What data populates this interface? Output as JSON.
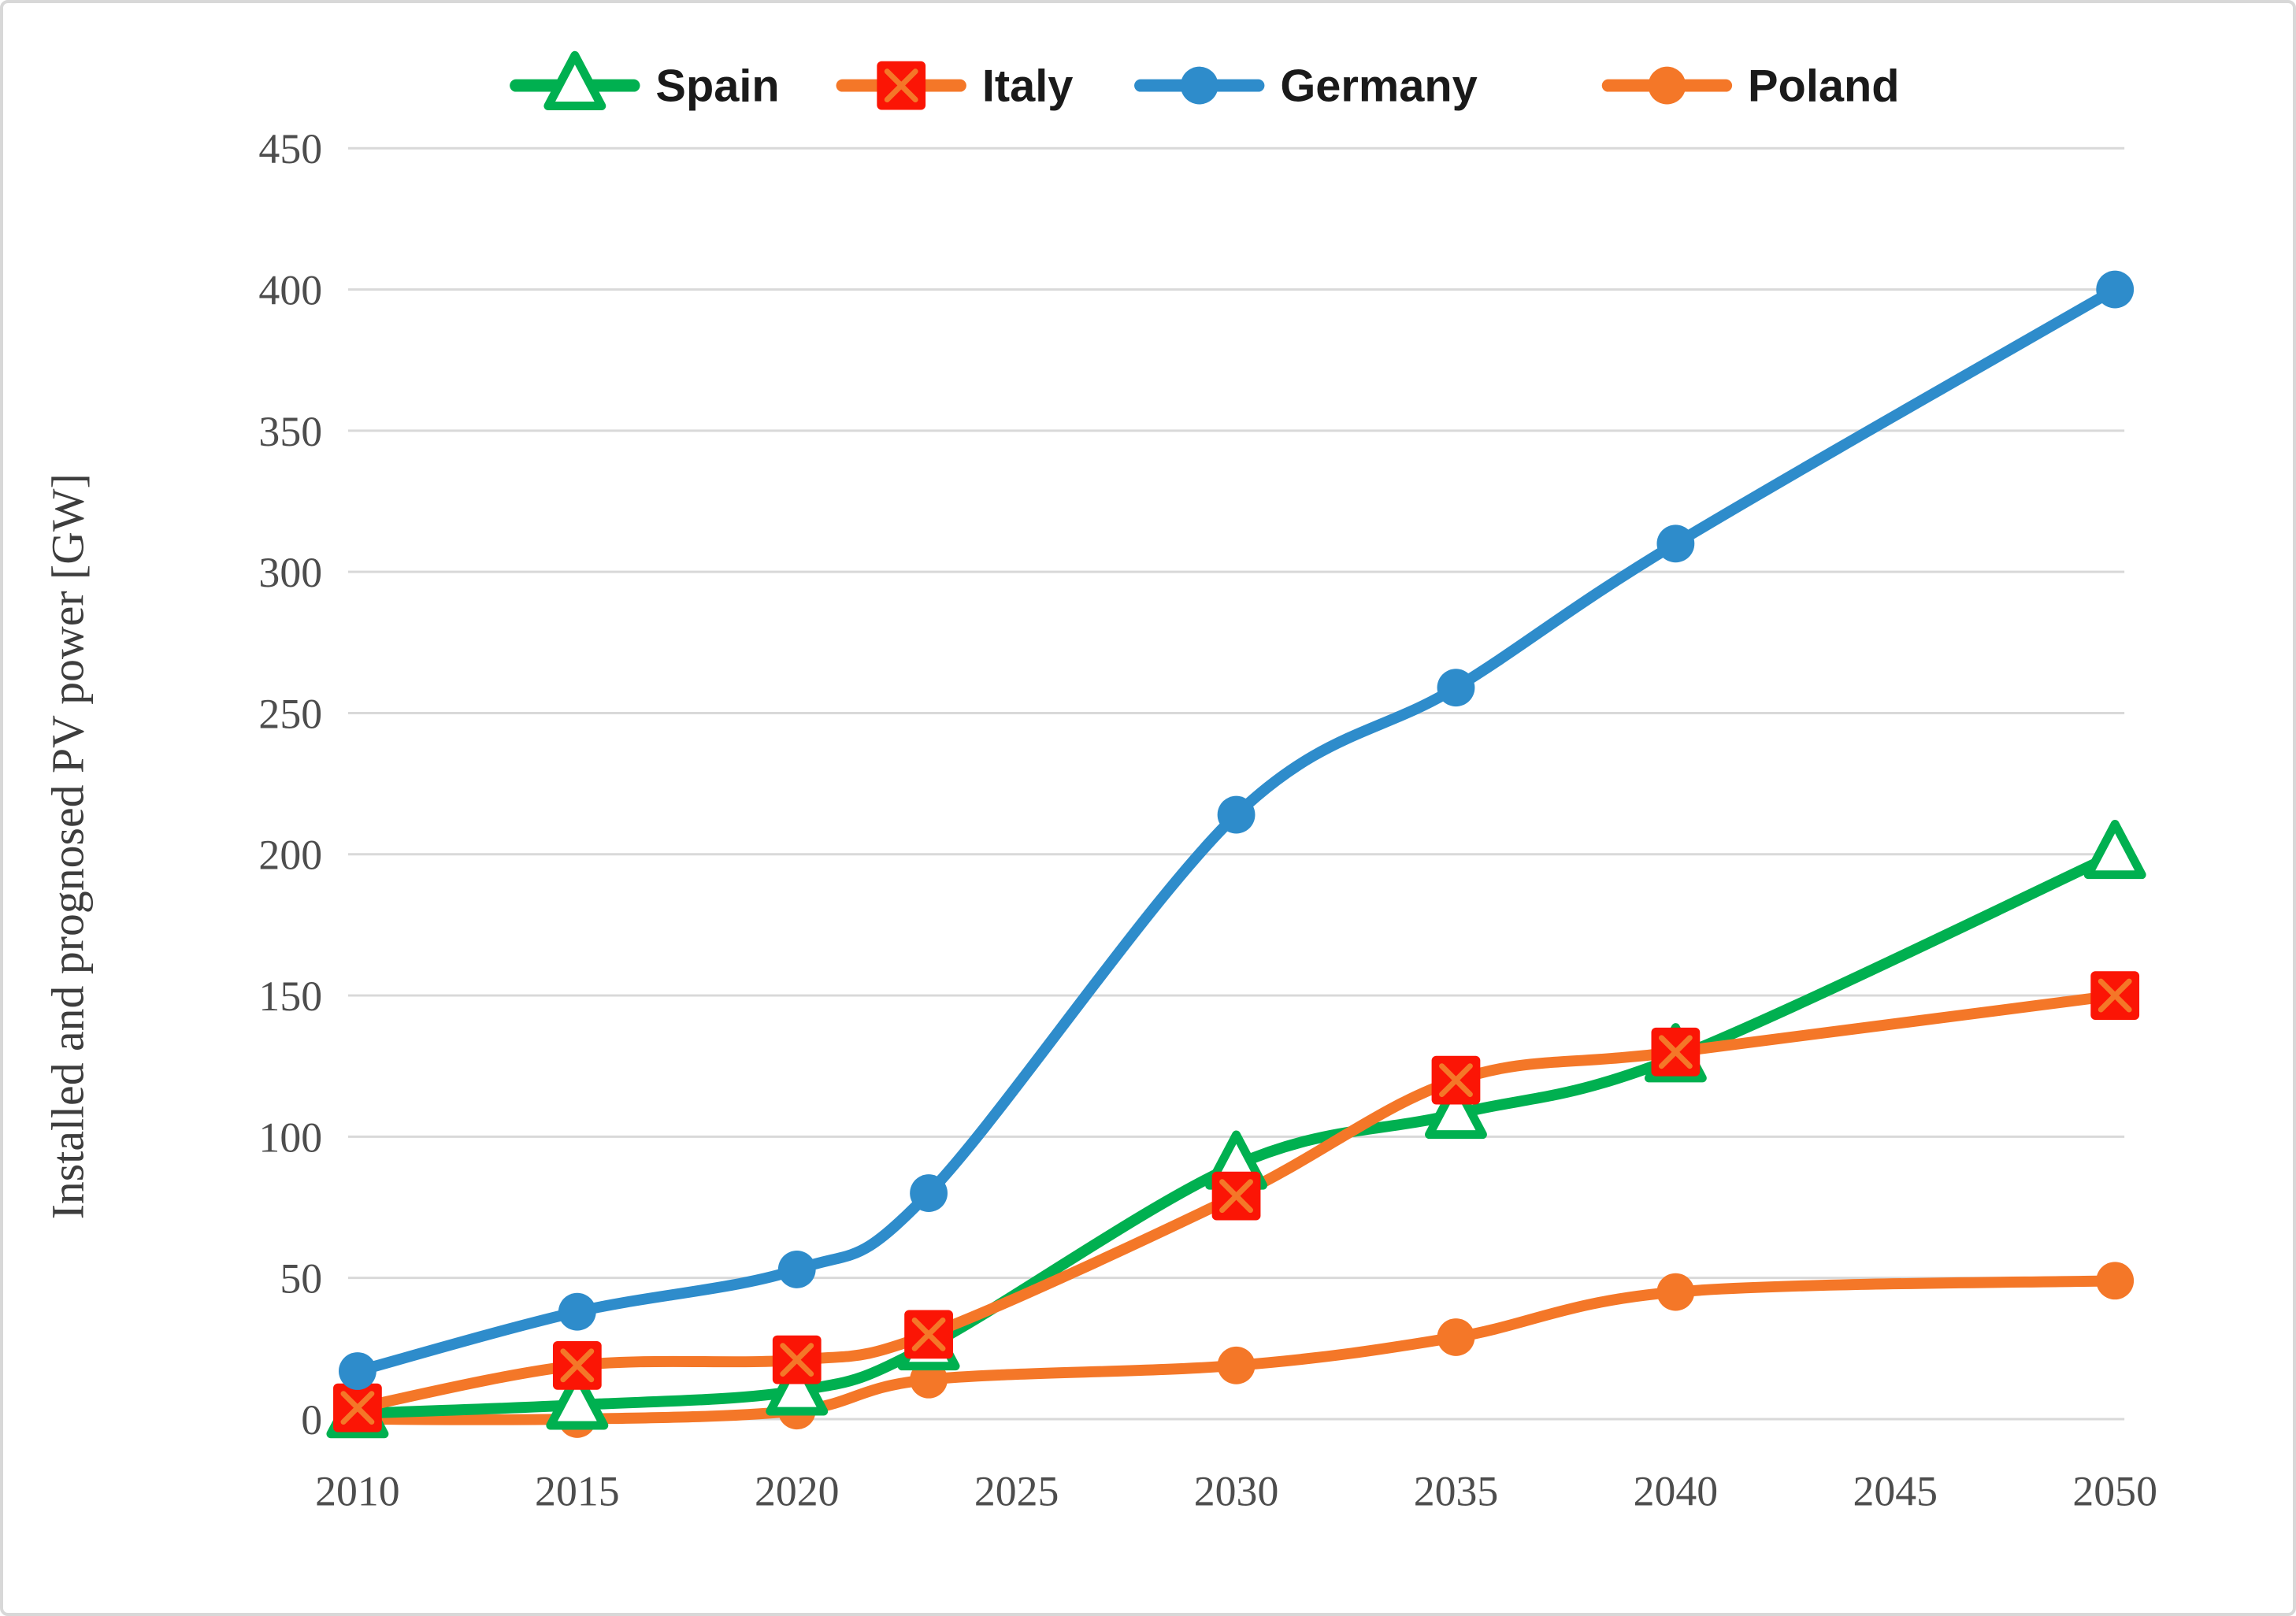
{
  "figure": {
    "type": "line-chart-image",
    "background": "#ffffff",
    "frame_color": "#d8d8d8"
  },
  "chart_data": {
    "type": "line",
    "title": "",
    "xlabel": "",
    "ylabel": "Installed and prognosed PV power [GW]",
    "x": [
      2010,
      2015,
      2020,
      2023,
      2030,
      2035,
      2040,
      2050
    ],
    "series": [
      {
        "name": "Spain",
        "values": [
          2,
          5,
          10,
          26,
          90,
          108,
          128,
          200
        ],
        "line_color": "#00b050",
        "marker": "triangle-open",
        "marker_color": "#00b050",
        "marker_fill": "#ffffff"
      },
      {
        "name": "Italy",
        "values": [
          4,
          19,
          21,
          30,
          79,
          120,
          130,
          150
        ],
        "line_color": "#f47728",
        "marker": "square-x",
        "marker_color": "#fb1505",
        "marker_fill": "#fb1505",
        "marker_cross_color": "#f47728"
      },
      {
        "name": "Germany",
        "values": [
          17,
          38,
          53,
          80,
          214,
          259,
          310,
          400
        ],
        "line_color": "#2e8ccb",
        "marker": "circle",
        "marker_color": "#2e8ccb",
        "marker_fill": "#2e8ccb"
      },
      {
        "name": "Poland",
        "values": [
          0,
          0,
          3,
          14,
          19,
          29,
          45,
          49
        ],
        "line_color": "#f47728",
        "marker": "circle",
        "marker_color": "#f47728",
        "marker_fill": "#f47728"
      }
    ],
    "x_ticks": [
      "2010",
      "2015",
      "2020",
      "2025",
      "2030",
      "2035",
      "2040",
      "2045",
      "2050"
    ],
    "x_tick_values": [
      2010,
      2015,
      2020,
      2025,
      2030,
      2035,
      2040,
      2045,
      2050
    ],
    "y_ticks": [
      "0",
      "50",
      "100",
      "150",
      "200",
      "250",
      "300",
      "350",
      "400",
      "450"
    ],
    "y_tick_values": [
      0,
      50,
      100,
      150,
      200,
      250,
      300,
      350,
      400,
      450
    ],
    "xlim": [
      2010,
      2050
    ],
    "ylim": [
      0,
      450
    ],
    "grid": "horizontal",
    "grid_color": "#d9d9d9",
    "tick_label_color": "#4d4d4d",
    "legend_position": "top",
    "legend_labels": [
      "Spain",
      "Italy",
      "Germany",
      "Poland"
    ],
    "legend_text_color": "#1a1a1a"
  }
}
